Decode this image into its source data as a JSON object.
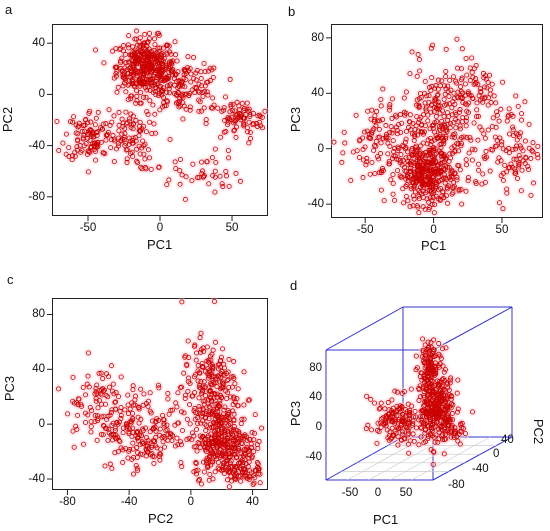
{
  "panels": [
    {
      "letter": "a",
      "chart_data": {
        "type": "scatter",
        "xlabel": "PC1",
        "ylabel": "PC2",
        "xlim": [
          -75,
          75
        ],
        "ylim": [
          -95,
          55
        ],
        "x_ticks": [
          -50,
          0,
          50
        ],
        "y_ticks": [
          40,
          0,
          -40,
          -80
        ],
        "marker_color": "#cc0000",
        "clusters": [
          {
            "cx": -10,
            "cy": 22,
            "sx": 10,
            "sy": 11,
            "n": 380
          },
          {
            "cx": 15,
            "cy": 5,
            "sx": 14,
            "sy": 10,
            "n": 150
          },
          {
            "cx": 55,
            "cy": -20,
            "sx": 11,
            "sy": 8,
            "n": 90
          },
          {
            "cx": -48,
            "cy": -32,
            "sx": 9,
            "sy": 10,
            "n": 110
          },
          {
            "cx": -22,
            "cy": -35,
            "sx": 8,
            "sy": 12,
            "n": 80
          },
          {
            "cx": 25,
            "cy": -62,
            "sx": 16,
            "sy": 9,
            "n": 45
          }
        ]
      }
    },
    {
      "letter": "b",
      "chart_data": {
        "type": "scatter",
        "xlabel": "PC1",
        "ylabel": "PC3",
        "xlim": [
          -75,
          80
        ],
        "ylim": [
          -50,
          90
        ],
        "x_ticks": [
          -50,
          0,
          50
        ],
        "y_ticks": [
          80,
          40,
          0,
          -40
        ],
        "marker_color": "#cc0000",
        "clusters": [
          {
            "cx": -5,
            "cy": -20,
            "sx": 11,
            "sy": 10,
            "n": 320
          },
          {
            "cx": 5,
            "cy": 15,
            "sx": 14,
            "sy": 22,
            "n": 280
          },
          {
            "cx": -40,
            "cy": 5,
            "sx": 14,
            "sy": 15,
            "n": 120
          },
          {
            "cx": 55,
            "cy": 0,
            "sx": 12,
            "sy": 18,
            "n": 110
          },
          {
            "cx": 30,
            "cy": 45,
            "sx": 12,
            "sy": 12,
            "n": 60
          }
        ]
      }
    },
    {
      "letter": "c",
      "chart_data": {
        "type": "scatter",
        "xlabel": "PC2",
        "ylabel": "PC3",
        "xlim": [
          -90,
          50
        ],
        "ylim": [
          -48,
          92
        ],
        "x_ticks": [
          -80,
          -40,
          0,
          40
        ],
        "y_ticks": [
          80,
          40,
          0,
          -40
        ],
        "marker_color": "#cc0000",
        "clusters": [
          {
            "cx": 22,
            "cy": -15,
            "sx": 10,
            "sy": 12,
            "n": 320
          },
          {
            "cx": 12,
            "cy": 25,
            "sx": 9,
            "sy": 18,
            "n": 240
          },
          {
            "cx": -30,
            "cy": -5,
            "sx": 14,
            "sy": 14,
            "n": 200
          },
          {
            "cx": -62,
            "cy": 15,
            "sx": 10,
            "sy": 15,
            "n": 90
          },
          {
            "cx": 35,
            "cy": -35,
            "sx": 6,
            "sy": 6,
            "n": 60
          }
        ]
      }
    },
    {
      "letter": "d",
      "chart_data": {
        "type": "scatter",
        "projection": "3d",
        "xlabel": "PC1",
        "ylabel": "PC2",
        "zlabel": "PC3",
        "x_ticks": [
          -50,
          0,
          50
        ],
        "y_ticks": [
          40,
          0,
          -40,
          -80
        ],
        "z_ticks": [
          80,
          40,
          0,
          -40
        ],
        "marker_color": "#cc0000",
        "box_color": "#3333cc"
      }
    }
  ]
}
